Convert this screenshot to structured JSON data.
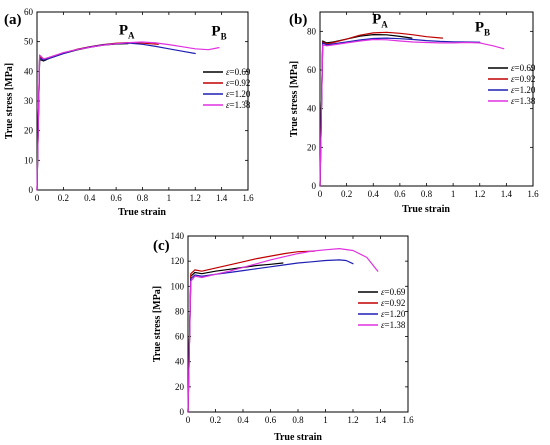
{
  "chart_data": [
    {
      "type": "line",
      "panel_label": "(a)",
      "xlabel": "True strain",
      "ylabel": "True stress [MPa]",
      "xlim": [
        0,
        1.6
      ],
      "ylim": [
        0,
        60
      ],
      "xticks": [
        "0",
        "0.2",
        "0.4",
        "0.6",
        "0.8",
        "1",
        "1.2",
        "1.4",
        "1.6"
      ],
      "yticks": [
        "0",
        "10",
        "20",
        "30",
        "40",
        "50",
        "60"
      ],
      "legend_position": "right",
      "annotations": [
        {
          "main": "P",
          "sub": "A",
          "x": 0.68,
          "y": 52.5
        },
        {
          "main": "P",
          "sub": "B",
          "x": 1.38,
          "y": 52
        }
      ],
      "series": [
        {
          "name": "ε=0.69",
          "symbol": "ε",
          "value": "=0.69",
          "color": "#000000",
          "x": [
            0,
            0.02,
            0.05,
            0.1,
            0.2,
            0.3,
            0.4,
            0.5,
            0.6,
            0.69
          ],
          "y": [
            0,
            44,
            43.5,
            44.5,
            46,
            47.2,
            48.1,
            48.8,
            49.2,
            49.3
          ]
        },
        {
          "name": "ε=0.92",
          "symbol": "ε",
          "value": "=0.92",
          "color": "#c00000",
          "x": [
            0,
            0.02,
            0.05,
            0.1,
            0.2,
            0.3,
            0.4,
            0.5,
            0.6,
            0.7,
            0.8,
            0.92
          ],
          "y": [
            0,
            45,
            44,
            44.8,
            46.2,
            47.4,
            48.3,
            49,
            49.5,
            49.7,
            49.5,
            49.1
          ]
        },
        {
          "name": "ε=1.20",
          "symbol": "ε",
          "value": "=1.20",
          "color": "#1f1fb4",
          "x": [
            0,
            0.02,
            0.05,
            0.1,
            0.2,
            0.3,
            0.4,
            0.5,
            0.6,
            0.7,
            0.8,
            0.9,
            1.0,
            1.1,
            1.2
          ],
          "y": [
            0,
            44.5,
            43.8,
            44.5,
            46,
            47.3,
            48.2,
            48.9,
            49.3,
            49.5,
            49.1,
            48.4,
            47.6,
            46.8,
            46
          ]
        },
        {
          "name": "ε=1.38",
          "symbol": "ε",
          "value": "=1.38",
          "color": "#e030e0",
          "x": [
            0,
            0.02,
            0.05,
            0.1,
            0.2,
            0.3,
            0.4,
            0.5,
            0.6,
            0.7,
            0.8,
            0.9,
            1.0,
            1.1,
            1.2,
            1.3,
            1.38
          ],
          "y": [
            0,
            45.5,
            44.2,
            44.8,
            46.3,
            47.3,
            48.1,
            48.8,
            49.3,
            49.7,
            49.9,
            49.6,
            49,
            48.3,
            47.6,
            47.3,
            48
          ]
        }
      ]
    },
    {
      "type": "line",
      "panel_label": "(b)",
      "xlabel": "True strain",
      "ylabel": "True stress [MPa]",
      "xlim": [
        0,
        1.6
      ],
      "ylim": [
        0,
        90
      ],
      "xticks": [
        "0",
        "0.2",
        "0.4",
        "0.6",
        "0.8",
        "1",
        "1.2",
        "1.4",
        "1.6"
      ],
      "yticks": [
        "0",
        "20",
        "40",
        "60",
        "80"
      ],
      "legend_position": "right",
      "annotations": [
        {
          "main": "P",
          "sub": "A",
          "x": 0.45,
          "y": 84
        },
        {
          "main": "P",
          "sub": "B",
          "x": 1.22,
          "y": 80
        }
      ],
      "series": [
        {
          "name": "ε=0.69",
          "symbol": "ε",
          "value": "=0.69",
          "color": "#000000",
          "x": [
            0,
            0.02,
            0.05,
            0.1,
            0.2,
            0.3,
            0.4,
            0.5,
            0.6,
            0.69
          ],
          "y": [
            0,
            75,
            74,
            74.5,
            76,
            77.5,
            78.3,
            78.2,
            77.4,
            76.5
          ]
        },
        {
          "name": "ε=0.92",
          "symbol": "ε",
          "value": "=0.92",
          "color": "#c00000",
          "x": [
            0,
            0.02,
            0.05,
            0.1,
            0.2,
            0.3,
            0.4,
            0.5,
            0.6,
            0.7,
            0.8,
            0.92
          ],
          "y": [
            0,
            74.5,
            73.5,
            74.2,
            76,
            78,
            79.2,
            79.5,
            79,
            78.2,
            77.2,
            76.5
          ]
        },
        {
          "name": "ε=1.20",
          "symbol": "ε",
          "value": "=1.20",
          "color": "#1f1fb4",
          "x": [
            0,
            0.02,
            0.05,
            0.1,
            0.2,
            0.3,
            0.4,
            0.5,
            0.6,
            0.7,
            0.8,
            0.9,
            1.0,
            1.1,
            1.2
          ],
          "y": [
            0,
            74,
            73,
            73.5,
            74.5,
            75.5,
            76.3,
            76.5,
            76.2,
            75.8,
            75.2,
            74.8,
            74.6,
            74.5,
            74.4
          ]
        },
        {
          "name": "ε=1.38",
          "symbol": "ε",
          "value": "=1.38",
          "color": "#e030e0",
          "x": [
            0,
            0.02,
            0.05,
            0.1,
            0.2,
            0.3,
            0.4,
            0.5,
            0.6,
            0.7,
            0.8,
            0.9,
            1.0,
            1.1,
            1.2,
            1.3,
            1.38
          ],
          "y": [
            0,
            73,
            72.5,
            73,
            74,
            75,
            75.8,
            75.6,
            75,
            74.5,
            74.2,
            74,
            74,
            74.2,
            74,
            72.5,
            71
          ]
        }
      ]
    },
    {
      "type": "line",
      "panel_label": "(c)",
      "xlabel": "True strain",
      "ylabel": "True stress [MPa]",
      "xlim": [
        0,
        1.6
      ],
      "ylim": [
        0,
        140
      ],
      "xticks": [
        "0",
        "0.2",
        "0.4",
        "0.6",
        "0.8",
        "1",
        "1.2",
        "1.4",
        "1.6"
      ],
      "yticks": [
        "0",
        "20",
        "40",
        "60",
        "80",
        "100",
        "120",
        "140"
      ],
      "legend_position": "right",
      "annotations": [],
      "series": [
        {
          "name": "ε=0.69",
          "symbol": "ε",
          "value": "=0.69",
          "color": "#000000",
          "x": [
            0,
            0.02,
            0.05,
            0.1,
            0.2,
            0.3,
            0.4,
            0.5,
            0.6,
            0.69
          ],
          "y": [
            0,
            108,
            111,
            110,
            112,
            113.5,
            115,
            116.5,
            117.5,
            118.5
          ]
        },
        {
          "name": "ε=0.92",
          "symbol": "ε",
          "value": "=0.92",
          "color": "#c00000",
          "x": [
            0,
            0.02,
            0.05,
            0.1,
            0.2,
            0.3,
            0.4,
            0.5,
            0.6,
            0.7,
            0.8,
            0.92
          ],
          "y": [
            0,
            110,
            113,
            112,
            114.5,
            117,
            119.5,
            122,
            124,
            126,
            127.5,
            128
          ]
        },
        {
          "name": "ε=1.20",
          "symbol": "ε",
          "value": "=1.20",
          "color": "#1f1fb4",
          "x": [
            0,
            0.02,
            0.05,
            0.1,
            0.2,
            0.3,
            0.4,
            0.5,
            0.6,
            0.7,
            0.8,
            0.9,
            1.0,
            1.1,
            1.15,
            1.2
          ],
          "y": [
            0,
            106,
            109,
            108,
            109.5,
            111,
            112.5,
            114,
            115.5,
            117,
            118.5,
            119.5,
            120.5,
            121,
            120.5,
            118
          ]
        },
        {
          "name": "ε=1.38",
          "symbol": "ε",
          "value": "=1.38",
          "color": "#e030e0",
          "x": [
            0,
            0.02,
            0.05,
            0.1,
            0.2,
            0.3,
            0.4,
            0.5,
            0.6,
            0.7,
            0.8,
            0.9,
            1.0,
            1.1,
            1.2,
            1.3,
            1.38
          ],
          "y": [
            0,
            104,
            108,
            107,
            109.5,
            112,
            115,
            118,
            121,
            123.5,
            126,
            128,
            129,
            130,
            128.5,
            123,
            112
          ]
        }
      ]
    }
  ]
}
